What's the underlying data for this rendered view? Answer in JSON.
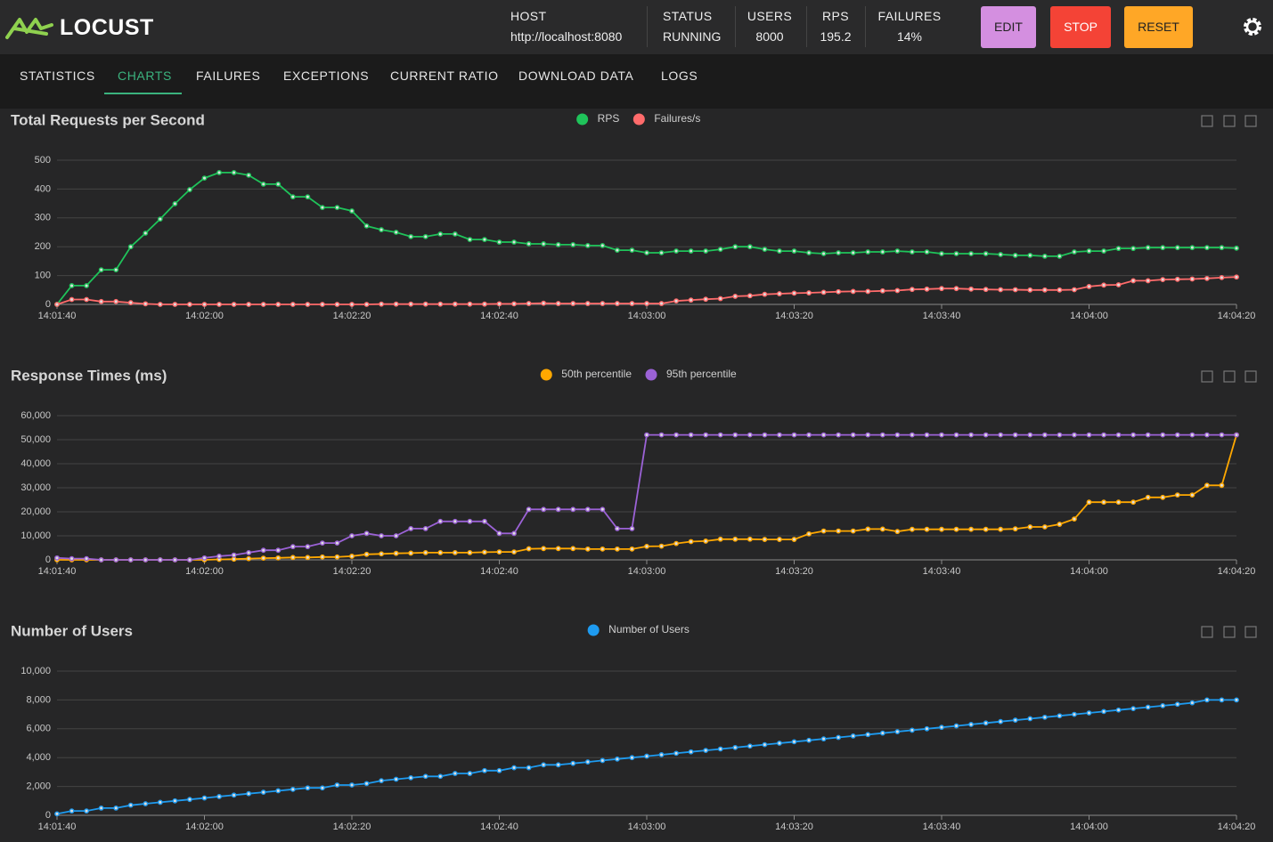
{
  "header": {
    "logo": "LOCUST",
    "stats": [
      {
        "label": "HOST",
        "value": "http://localhost:8080"
      },
      {
        "label": "STATUS",
        "value": "RUNNING"
      },
      {
        "label": "USERS",
        "value": "8000"
      },
      {
        "label": "RPS",
        "value": "195.2"
      },
      {
        "label": "FAILURES",
        "value": "14%"
      }
    ],
    "buttons": [
      "EDIT",
      "STOP",
      "RESET"
    ]
  },
  "tabs": {
    "items": [
      "STATISTICS",
      "CHARTS",
      "FAILURES",
      "EXCEPTIONS",
      "CURRENT RATIO",
      "DOWNLOAD DATA",
      "LOGS"
    ],
    "active": 1
  },
  "chart_data": [
    {
      "type": "line",
      "title": "Total Requests per Second",
      "grid": true,
      "x": [
        "14:01:40",
        "14:01:42",
        "14:01:44",
        "14:01:46",
        "14:01:48",
        "14:01:50",
        "14:01:52",
        "14:01:54",
        "14:01:56",
        "14:01:58",
        "14:02:00",
        "14:02:02",
        "14:02:04",
        "14:02:06",
        "14:02:08",
        "14:02:10",
        "14:02:12",
        "14:02:14",
        "14:02:16",
        "14:02:18",
        "14:02:20",
        "14:02:22",
        "14:02:24",
        "14:02:26",
        "14:02:28",
        "14:02:30",
        "14:02:32",
        "14:02:34",
        "14:02:36",
        "14:02:38",
        "14:02:40",
        "14:02:42",
        "14:02:44",
        "14:02:46",
        "14:02:48",
        "14:02:50",
        "14:02:52",
        "14:02:54",
        "14:02:56",
        "14:02:58",
        "14:03:00",
        "14:03:02",
        "14:03:04",
        "14:03:06",
        "14:03:08",
        "14:03:10",
        "14:03:12",
        "14:03:14",
        "14:03:16",
        "14:03:18",
        "14:03:20",
        "14:03:22",
        "14:03:24",
        "14:03:26",
        "14:03:28",
        "14:03:30",
        "14:03:32",
        "14:03:34",
        "14:03:36",
        "14:03:38",
        "14:03:40",
        "14:03:42",
        "14:03:44",
        "14:03:46",
        "14:03:48",
        "14:03:50",
        "14:03:52",
        "14:03:54",
        "14:03:56",
        "14:03:58",
        "14:04:00",
        "14:04:02",
        "14:04:04",
        "14:04:06",
        "14:04:08",
        "14:04:10",
        "14:04:12",
        "14:04:14",
        "14:04:16",
        "14:04:18",
        "14:04:20"
      ],
      "xlim": [
        "14:01:40",
        "14:04:20"
      ],
      "xticks": [
        "14:01:40",
        "14:02:00",
        "14:02:20",
        "14:02:40",
        "14:03:00",
        "14:03:20",
        "14:03:40",
        "14:04:00",
        "14:04:20"
      ],
      "ylim": [
        0,
        500
      ],
      "yticks": [
        0,
        100,
        200,
        300,
        400,
        500
      ],
      "series": [
        {
          "name": "RPS",
          "color": "#1fc35a",
          "values": [
            0,
            65,
            65,
            120,
            120,
            200,
            247,
            296,
            349,
            398,
            438,
            457,
            457,
            448,
            417,
            417,
            373,
            373,
            336,
            336,
            324,
            272,
            259,
            250,
            235,
            235,
            244,
            244,
            225,
            225,
            216,
            216,
            210,
            210,
            207,
            207,
            204,
            204,
            188,
            188,
            179,
            179,
            185,
            185,
            185,
            191,
            200,
            200,
            191,
            185,
            185,
            179,
            176,
            179,
            179,
            182,
            182,
            185,
            182,
            182,
            176,
            176,
            176,
            176,
            173,
            170,
            170,
            167,
            167,
            182,
            185,
            185,
            194,
            194,
            197,
            197,
            197,
            197,
            197,
            197,
            195
          ]
        },
        {
          "name": "Failures/s",
          "color": "#ff6b6b",
          "values": [
            0,
            17,
            17,
            10,
            10,
            6,
            2,
            0,
            0,
            0,
            0,
            0,
            0,
            0,
            0,
            0,
            0,
            0,
            0,
            0,
            0,
            0,
            1,
            1,
            1,
            1,
            1,
            1,
            1,
            1,
            2,
            2,
            3,
            4,
            3,
            3,
            3,
            3,
            3,
            3,
            3,
            3,
            12,
            15,
            18,
            20,
            28,
            30,
            35,
            37,
            39,
            40,
            42,
            44,
            45,
            45,
            47,
            48,
            52,
            53,
            55,
            55,
            53,
            52,
            51,
            51,
            50,
            50,
            50,
            51,
            62,
            67,
            68,
            82,
            82,
            86,
            87,
            88,
            90,
            93,
            95
          ]
        }
      ]
    },
    {
      "type": "line",
      "title": "Response Times (ms)",
      "grid": true,
      "x": [
        "14:01:40",
        "14:01:42",
        "14:01:44",
        "14:01:46",
        "14:01:48",
        "14:01:50",
        "14:01:52",
        "14:01:54",
        "14:01:56",
        "14:01:58",
        "14:02:00",
        "14:02:02",
        "14:02:04",
        "14:02:06",
        "14:02:08",
        "14:02:10",
        "14:02:12",
        "14:02:14",
        "14:02:16",
        "14:02:18",
        "14:02:20",
        "14:02:22",
        "14:02:24",
        "14:02:26",
        "14:02:28",
        "14:02:30",
        "14:02:32",
        "14:02:34",
        "14:02:36",
        "14:02:38",
        "14:02:40",
        "14:02:42",
        "14:02:44",
        "14:02:46",
        "14:02:48",
        "14:02:50",
        "14:02:52",
        "14:02:54",
        "14:02:56",
        "14:02:58",
        "14:03:00",
        "14:03:02",
        "14:03:04",
        "14:03:06",
        "14:03:08",
        "14:03:10",
        "14:03:12",
        "14:03:14",
        "14:03:16",
        "14:03:18",
        "14:03:20",
        "14:03:22",
        "14:03:24",
        "14:03:26",
        "14:03:28",
        "14:03:30",
        "14:03:32",
        "14:03:34",
        "14:03:36",
        "14:03:38",
        "14:03:40",
        "14:03:42",
        "14:03:44",
        "14:03:46",
        "14:03:48",
        "14:03:50",
        "14:03:52",
        "14:03:54",
        "14:03:56",
        "14:03:58",
        "14:04:00",
        "14:04:02",
        "14:04:04",
        "14:04:06",
        "14:04:08",
        "14:04:10",
        "14:04:12",
        "14:04:14",
        "14:04:16",
        "14:04:18",
        "14:04:20"
      ],
      "xlim": [
        "14:01:40",
        "14:04:20"
      ],
      "xticks": [
        "14:01:40",
        "14:02:00",
        "14:02:20",
        "14:02:40",
        "14:03:00",
        "14:03:20",
        "14:03:40",
        "14:04:00",
        "14:04:20"
      ],
      "ylim": [
        0,
        60000
      ],
      "yticks": [
        0,
        {
          "value": 10000,
          "label": "10,000"
        },
        {
          "value": 20000,
          "label": "20,000"
        },
        {
          "value": 30000,
          "label": "30,000"
        },
        {
          "value": 40000,
          "label": "40,000"
        },
        {
          "value": 50000,
          "label": "50,000"
        },
        {
          "value": 60000,
          "label": "60,000"
        }
      ],
      "series": [
        {
          "name": "50th percentile",
          "color": "#ffa800",
          "values": [
            0,
            0,
            0,
            0,
            0,
            0,
            0,
            0,
            0,
            0,
            0,
            200,
            300,
            500,
            700,
            800,
            1000,
            1000,
            1200,
            1200,
            1500,
            2300,
            2500,
            2700,
            2800,
            3000,
            3000,
            3000,
            3000,
            3200,
            3300,
            3300,
            4600,
            4700,
            4700,
            4700,
            4500,
            4500,
            4500,
            4500,
            5600,
            5700,
            6800,
            7600,
            7800,
            8600,
            8600,
            8600,
            8500,
            8500,
            8500,
            10800,
            12000,
            12000,
            12000,
            12800,
            12800,
            11800,
            12700,
            12700,
            12700,
            12700,
            12700,
            12700,
            12700,
            12900,
            13700,
            13700,
            14800,
            17000,
            24000,
            24000,
            24000,
            24000,
            26000,
            26000,
            27000,
            27000,
            31000,
            31000,
            52000
          ]
        },
        {
          "name": "95th percentile",
          "color": "#9b62d6",
          "values": [
            800,
            500,
            500,
            0,
            0,
            0,
            0,
            0,
            0,
            0,
            800,
            1500,
            2000,
            3000,
            4000,
            4000,
            5500,
            5500,
            7000,
            7000,
            10000,
            11000,
            10000,
            10000,
            13000,
            13000,
            16000,
            16000,
            16000,
            16000,
            11000,
            11000,
            21000,
            21000,
            21000,
            21000,
            21000,
            21000,
            13000,
            13000,
            52000,
            52000,
            52000,
            52000,
            52000,
            52000,
            52000,
            52000,
            52000,
            52000,
            52000,
            52000,
            52000,
            52000,
            52000,
            52000,
            52000,
            52000,
            52000,
            52000,
            52000,
            52000,
            52000,
            52000,
            52000,
            52000,
            52000,
            52000,
            52000,
            52000,
            52000,
            52000,
            52000,
            52000,
            52000,
            52000,
            52000,
            52000,
            52000,
            52000,
            52000
          ]
        }
      ]
    },
    {
      "type": "line",
      "title": "Number of Users",
      "grid": true,
      "x": [
        "14:01:40",
        "14:01:42",
        "14:01:44",
        "14:01:46",
        "14:01:48",
        "14:01:50",
        "14:01:52",
        "14:01:54",
        "14:01:56",
        "14:01:58",
        "14:02:00",
        "14:02:02",
        "14:02:04",
        "14:02:06",
        "14:02:08",
        "14:02:10",
        "14:02:12",
        "14:02:14",
        "14:02:16",
        "14:02:18",
        "14:02:20",
        "14:02:22",
        "14:02:24",
        "14:02:26",
        "14:02:28",
        "14:02:30",
        "14:02:32",
        "14:02:34",
        "14:02:36",
        "14:02:38",
        "14:02:40",
        "14:02:42",
        "14:02:44",
        "14:02:46",
        "14:02:48",
        "14:02:50",
        "14:02:52",
        "14:02:54",
        "14:02:56",
        "14:02:58",
        "14:03:00",
        "14:03:02",
        "14:03:04",
        "14:03:06",
        "14:03:08",
        "14:03:10",
        "14:03:12",
        "14:03:14",
        "14:03:16",
        "14:03:18",
        "14:03:20",
        "14:03:22",
        "14:03:24",
        "14:03:26",
        "14:03:28",
        "14:03:30",
        "14:03:32",
        "14:03:34",
        "14:03:36",
        "14:03:38",
        "14:03:40",
        "14:03:42",
        "14:03:44",
        "14:03:46",
        "14:03:48",
        "14:03:50",
        "14:03:52",
        "14:03:54",
        "14:03:56",
        "14:03:58",
        "14:04:00",
        "14:04:02",
        "14:04:04",
        "14:04:06",
        "14:04:08",
        "14:04:10",
        "14:04:12",
        "14:04:14",
        "14:04:16",
        "14:04:18",
        "14:04:20"
      ],
      "xlim": [
        "14:01:40",
        "14:04:20"
      ],
      "xticks": [
        "14:01:40",
        "14:02:00",
        "14:02:20",
        "14:02:40",
        "14:03:00",
        "14:03:20",
        "14:03:40",
        "14:04:00",
        "14:04:20"
      ],
      "ylim": [
        0,
        10000
      ],
      "yticks": [
        0,
        {
          "value": 2000,
          "label": "2,000"
        },
        {
          "value": 4000,
          "label": "4,000"
        },
        {
          "value": 6000,
          "label": "6,000"
        },
        {
          "value": 8000,
          "label": "8,000"
        },
        {
          "value": 10000,
          "label": "10,000"
        }
      ],
      "series": [
        {
          "name": "Number of Users",
          "color": "#1e9bf0",
          "values": [
            100,
            300,
            300,
            500,
            500,
            700,
            800,
            900,
            1000,
            1100,
            1200,
            1300,
            1400,
            1500,
            1600,
            1700,
            1800,
            1900,
            1900,
            2100,
            2100,
            2200,
            2400,
            2500,
            2600,
            2700,
            2700,
            2900,
            2900,
            3100,
            3100,
            3300,
            3300,
            3500,
            3500,
            3600,
            3700,
            3800,
            3900,
            4000,
            4100,
            4200,
            4300,
            4400,
            4500,
            4600,
            4700,
            4800,
            4900,
            5000,
            5100,
            5200,
            5300,
            5400,
            5500,
            5600,
            5700,
            5800,
            5900,
            6000,
            6100,
            6200,
            6300,
            6400,
            6500,
            6600,
            6700,
            6800,
            6900,
            7000,
            7100,
            7200,
            7300,
            7400,
            7500,
            7600,
            7700,
            7800,
            8000,
            8000,
            8000
          ]
        }
      ]
    }
  ]
}
